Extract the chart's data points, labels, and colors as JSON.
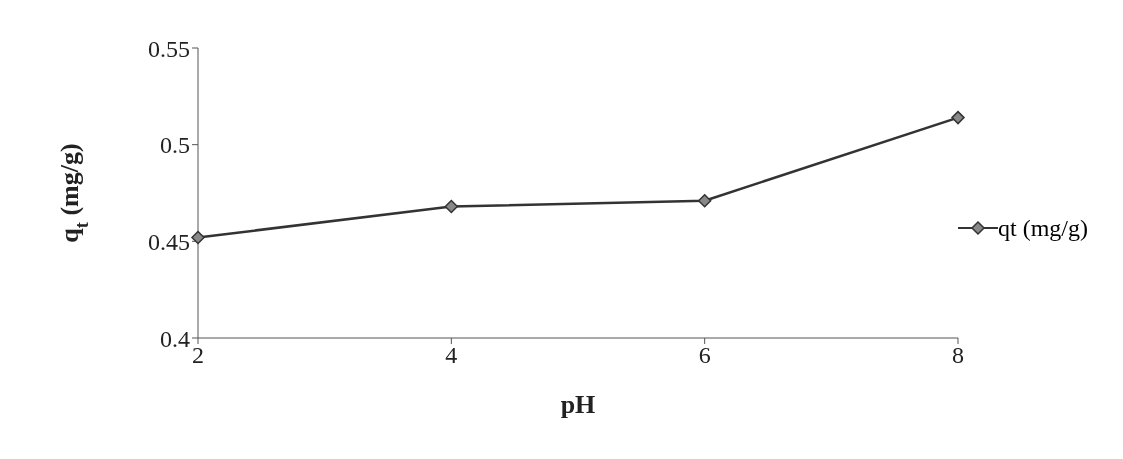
{
  "chart_data": {
    "type": "line",
    "xlabel": "pH",
    "ylabel": "q$_{t}$ (mg/g)",
    "categories": [
      "2",
      "4",
      "6",
      "8"
    ],
    "series": [
      {
        "name": "qt (mg/g)",
        "color": "#333333",
        "values": [
          0.452,
          0.468,
          0.471,
          0.514
        ]
      }
    ],
    "ylim": [
      0.4,
      0.55
    ],
    "yticks": [
      0.4,
      0.45,
      0.5,
      0.55
    ],
    "legend": "right",
    "marker": "diamond",
    "line_style": "solid"
  }
}
